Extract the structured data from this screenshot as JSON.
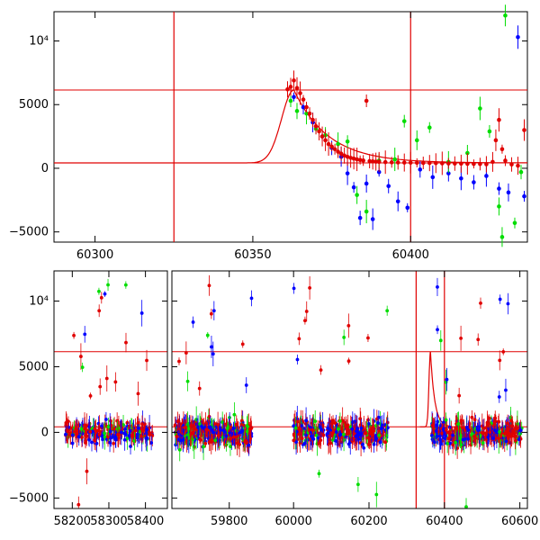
{
  "chart_data": [
    {
      "type": "scatter",
      "panel": "top",
      "xlim": [
        60287,
        60437
      ],
      "ylim": [
        -5800,
        12300
      ],
      "xticks": [
        "60300",
        "60350",
        "60400"
      ],
      "yticks": [
        "−5000",
        "0",
        "5000",
        "10⁴"
      ],
      "ytick_values": [
        -5000,
        0,
        5000,
        10000
      ],
      "xtick_values": [
        60300,
        60350,
        60400
      ],
      "hlines": [
        6150,
        420
      ],
      "vlines": [
        60325,
        60400
      ],
      "model_curve": {
        "color": "#e00000",
        "peak_x": 60363,
        "peak_y": 6150,
        "baseline": 420,
        "rise_tau": 5.5,
        "decay_tau": 11
      },
      "series": [
        {
          "color": "#0000ff",
          "points": [
            [
              60363,
              5600
            ],
            [
              60366,
              4800
            ],
            [
              60369,
              3600
            ],
            [
              60372,
              2500
            ],
            [
              60375,
              1600
            ],
            [
              60378,
              900
            ],
            [
              60380,
              -400
            ],
            [
              60382,
              -1500
            ],
            [
              60384,
              -3900
            ],
            [
              60386,
              -1200
            ],
            [
              60388,
              -4000
            ],
            [
              60390,
              -300
            ],
            [
              60393,
              -1400
            ],
            [
              60396,
              -2600
            ],
            [
              60399,
              -3100
            ],
            [
              60403,
              -100
            ],
            [
              60407,
              -700
            ],
            [
              60412,
              -400
            ],
            [
              60416,
              -800
            ],
            [
              60420,
              -1100
            ],
            [
              60424,
              -600
            ],
            [
              60428,
              -1600
            ],
            [
              60431,
              -1900
            ],
            [
              60434,
              10300
            ],
            [
              60436,
              -2200
            ]
          ]
        },
        {
          "color": "#00dd00",
          "points": [
            [
              60362,
              5300
            ],
            [
              60364,
              4500
            ],
            [
              60367,
              4300
            ],
            [
              60370,
              3100
            ],
            [
              60373,
              2600
            ],
            [
              60377,
              1900
            ],
            [
              60380,
              2100
            ],
            [
              60383,
              -2100
            ],
            [
              60386,
              -3400
            ],
            [
              60390,
              600
            ],
            [
              60395,
              700
            ],
            [
              60398,
              3700
            ],
            [
              60402,
              2200
            ],
            [
              60406,
              3200
            ],
            [
              60412,
              500
            ],
            [
              60418,
              1200
            ],
            [
              60422,
              4700
            ],
            [
              60425,
              2900
            ],
            [
              60428,
              -3000
            ],
            [
              60429,
              -5400
            ],
            [
              60430,
              12000
            ],
            [
              60433,
              -4300
            ],
            [
              60435,
              -300
            ]
          ]
        },
        {
          "color": "#e00000",
          "points": [
            [
              60361,
              6200
            ],
            [
              60362,
              6400
            ],
            [
              60363,
              6900
            ],
            [
              60364,
              6300
            ],
            [
              60365,
              5900
            ],
            [
              60366,
              5400
            ],
            [
              60367,
              4800
            ],
            [
              60368,
              4300
            ],
            [
              60369,
              3800
            ],
            [
              60370,
              3300
            ],
            [
              60371,
              2900
            ],
            [
              60372,
              2500
            ],
            [
              60373,
              2200
            ],
            [
              60374,
              1900
            ],
            [
              60375,
              1700
            ],
            [
              60376,
              1500
            ],
            [
              60377,
              1300
            ],
            [
              60378,
              1150
            ],
            [
              60379,
              1000
            ],
            [
              60380,
              900
            ],
            [
              60381,
              820
            ],
            [
              60382,
              760
            ],
            [
              60383,
              700
            ],
            [
              60384,
              650
            ],
            [
              60385,
              610
            ],
            [
              60386,
              5300
            ],
            [
              60387,
              560
            ],
            [
              60388,
              540
            ],
            [
              60389,
              520
            ],
            [
              60390,
              500
            ],
            [
              60392,
              480
            ],
            [
              60394,
              470
            ],
            [
              60396,
              460
            ],
            [
              60398,
              450
            ],
            [
              60400,
              440
            ],
            [
              60402,
              430
            ],
            [
              60404,
              420
            ],
            [
              60406,
              410
            ],
            [
              60408,
              400
            ],
            [
              60410,
              390
            ],
            [
              60412,
              380
            ],
            [
              60414,
              370
            ],
            [
              60416,
              360
            ],
            [
              60418,
              350
            ],
            [
              60420,
              340
            ],
            [
              60422,
              330
            ],
            [
              60424,
              320
            ],
            [
              60426,
              500
            ],
            [
              60427,
              2200
            ],
            [
              60428,
              3800
            ],
            [
              60429,
              1500
            ],
            [
              60430,
              600
            ],
            [
              60432,
              300
            ],
            [
              60434,
              200
            ],
            [
              60436,
              3000
            ]
          ]
        }
      ]
    },
    {
      "type": "scatter",
      "panel": "bottom",
      "broken_x_axis": true,
      "ylim": [
        -5800,
        12300
      ],
      "yticks": [
        "−5000",
        "0",
        "5000",
        "10⁴"
      ],
      "ytick_values": [
        -5000,
        0,
        5000,
        10000
      ],
      "hlines": [
        6150,
        420
      ],
      "segments": [
        {
          "xlim": [
            58150,
            58460
          ],
          "xticks": [
            "58200",
            "58300",
            "58400"
          ],
          "xtick_values": [
            58200,
            58300,
            58400
          ],
          "data_range": [
            58180,
            58420
          ]
        },
        {
          "xlim": [
            59620,
            59990
          ],
          "xticks": [
            "59800"
          ],
          "xtick_values": [
            59800
          ],
          "data_range": [
            59630,
            59870
          ],
          "second_cluster": [
            59930,
            59990
          ]
        },
        {
          "xlim": [
            59990,
            60620
          ],
          "xticks": [
            "60000",
            "60200",
            "60400",
            "60600"
          ],
          "xtick_values": [
            60000,
            60200,
            60400,
            60600
          ],
          "clusters": [
            [
              60000,
              60250
            ],
            [
              60360,
              60605
            ]
          ],
          "vlines": [
            60325,
            60400
          ],
          "peak_x": 60363
        }
      ],
      "series_colors": [
        "#0000ff",
        "#00dd00",
        "#e00000"
      ]
    }
  ]
}
